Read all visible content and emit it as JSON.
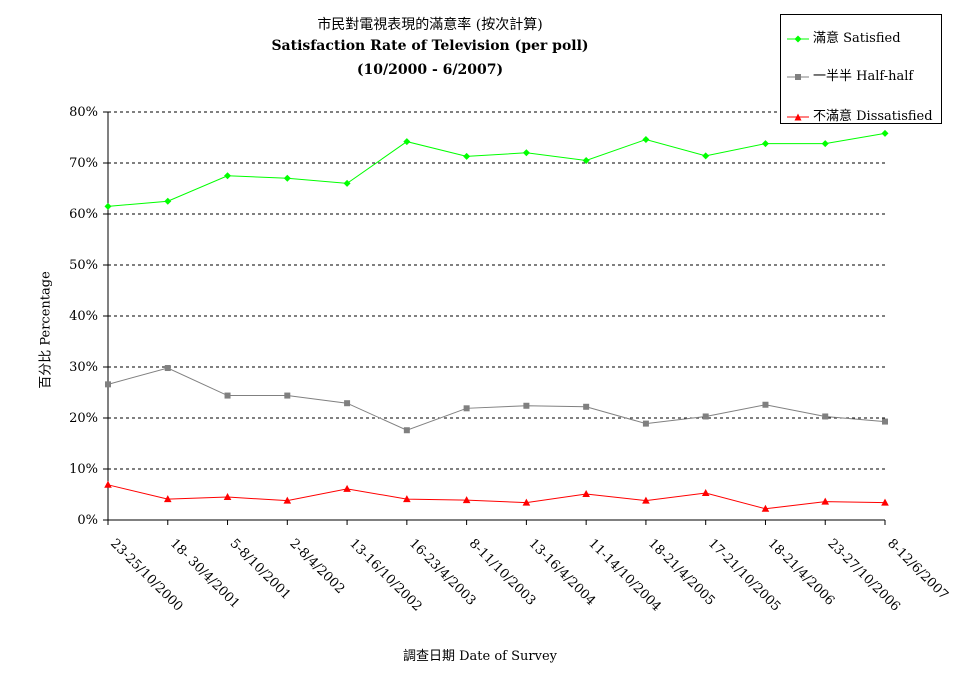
{
  "chart_data": {
    "type": "line",
    "title": "市民對電視表現的滿意率 (按次計算)",
    "subtitle": "Satisfaction Rate of Television (per poll)",
    "date_range": "(10/2000 - 6/2007)",
    "xlabel": "調查日期 Date of Survey",
    "ylabel": "百分比 Percentage",
    "ylim": [
      0,
      80
    ],
    "y_ticks": [
      "0%",
      "10%",
      "20%",
      "30%",
      "40%",
      "50%",
      "60%",
      "70%",
      "80%"
    ],
    "grid": "horizontal dashed",
    "legend_position": "top-right",
    "categories": [
      "23-25/10/2000",
      "18- 30/4/2001",
      "5-8/10/2001",
      "2-8/4/2002",
      "13-16/10/2002",
      "16-23/4/2003",
      "8-11/10/2003",
      "13-16/4/2004",
      "11-14/10/2004",
      "18-21/4/2005",
      "17-21/10/2005",
      "18-21/4/2006",
      "23-27/10/2006",
      "8-12/6/2007"
    ],
    "series": [
      {
        "name": "滿意 Satisfied",
        "color": "#00ff00",
        "marker": "diamond",
        "values": [
          61.5,
          62.5,
          67.5,
          67.0,
          66.0,
          74.2,
          71.3,
          72.0,
          70.5,
          74.6,
          71.4,
          73.8,
          73.8,
          75.8
        ]
      },
      {
        "name": "一半半 Half-half",
        "color": "#808080",
        "marker": "square",
        "values": [
          26.6,
          29.8,
          24.4,
          24.4,
          22.9,
          17.6,
          21.9,
          22.4,
          22.2,
          18.9,
          20.3,
          22.6,
          20.3,
          19.3
        ]
      },
      {
        "name": "不滿意 Dissatisfied",
        "color": "#ff0000",
        "marker": "triangle",
        "values": [
          6.9,
          4.1,
          4.5,
          3.8,
          6.1,
          4.1,
          3.9,
          3.4,
          5.1,
          3.8,
          5.3,
          2.2,
          3.6,
          3.4
        ]
      }
    ]
  }
}
